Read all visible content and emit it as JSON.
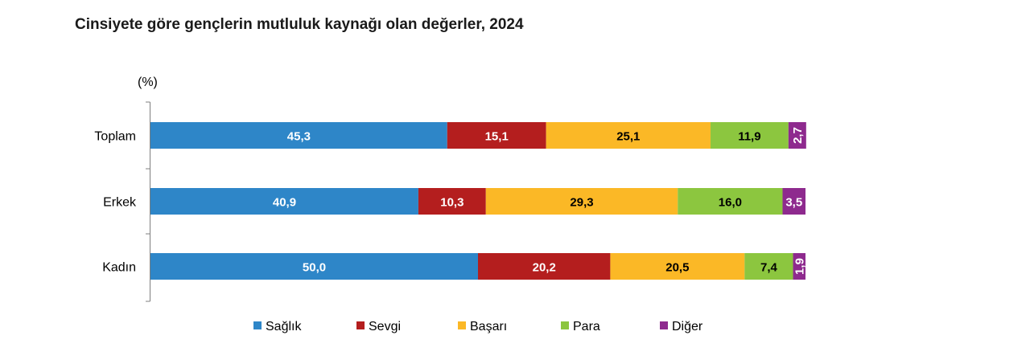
{
  "chart_data": {
    "type": "bar",
    "orientation": "horizontal",
    "stacked": true,
    "title": "Cinsiyete göre gençlerin mutluluk kaynağı olan değerler, 2024",
    "unit_label": "(%)",
    "categories": [
      "Toplam",
      "Erkek",
      "Kadın"
    ],
    "series": [
      {
        "name": "Sağlık",
        "color": "#2e86c8",
        "labels": [
          "45,3",
          "40,9",
          "50,0"
        ],
        "values": [
          45.3,
          40.9,
          50.0
        ]
      },
      {
        "name": "Sevgi",
        "color": "#b41e1e",
        "labels": [
          "15,1",
          "10,3",
          "20,2"
        ],
        "values": [
          15.1,
          10.3,
          20.2
        ]
      },
      {
        "name": "Başarı",
        "color": "#fbb826",
        "labels": [
          "25,1",
          "29,3",
          "20,5"
        ],
        "values": [
          25.1,
          29.3,
          20.5
        ]
      },
      {
        "name": "Para",
        "color": "#8cc63f",
        "labels": [
          "11,9",
          "16,0",
          "7,4"
        ],
        "values": [
          11.9,
          16.0,
          7.4
        ]
      },
      {
        "name": "Diğer",
        "color": "#8e2a8e",
        "labels": [
          "2,7",
          "3,5",
          "1,9"
        ],
        "values": [
          2.7,
          3.5,
          1.9
        ]
      }
    ],
    "xlim": [
      0,
      100
    ],
    "grid": false,
    "legend_position": "bottom"
  }
}
